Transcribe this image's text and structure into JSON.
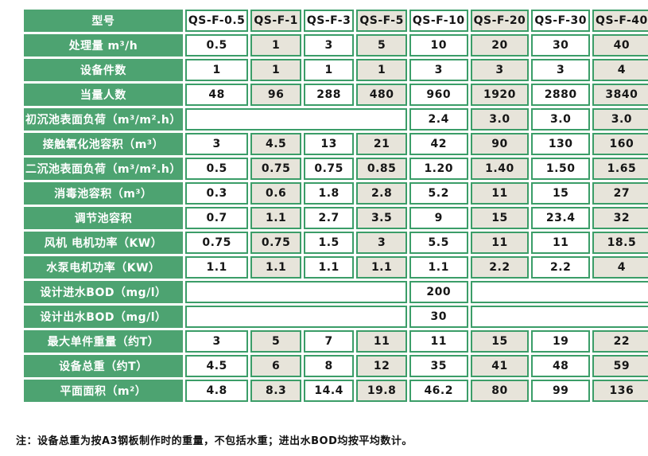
{
  "colors": {
    "green": "#4da371",
    "border_green": "#3b9d68",
    "beige": "#e7e4da",
    "cell_white": "#ffffff",
    "text_dark": "#161616",
    "text_light": "#ffffff"
  },
  "table": {
    "header_label": "型号",
    "models": [
      "QS-F-0.5",
      "QS-F-1",
      "QS-F-3",
      "QS-F-5",
      "QS-F-10",
      "QS-F-20",
      "QS-F-30",
      "QS-F-40"
    ],
    "rows": [
      {
        "label": "处理量 m³/h",
        "cells": [
          {
            "t": "0.5"
          },
          {
            "t": "1"
          },
          {
            "t": "3"
          },
          {
            "t": "5"
          },
          {
            "t": "10"
          },
          {
            "t": "20"
          },
          {
            "t": "30"
          },
          {
            "t": "40"
          }
        ]
      },
      {
        "label": "设备件数",
        "cells": [
          {
            "t": "1"
          },
          {
            "t": "1"
          },
          {
            "t": "1"
          },
          {
            "t": "1"
          },
          {
            "t": "3"
          },
          {
            "t": "3"
          },
          {
            "t": "3"
          },
          {
            "t": "4"
          }
        ]
      },
      {
        "label": "当量人数",
        "cells": [
          {
            "t": "48"
          },
          {
            "t": "96"
          },
          {
            "t": "288"
          },
          {
            "t": "480"
          },
          {
            "t": "960"
          },
          {
            "t": "1920"
          },
          {
            "t": "2880"
          },
          {
            "t": "3840"
          }
        ]
      },
      {
        "label": "初沉池表面负荷（m³/m².h）",
        "cells": [
          {
            "t": "",
            "span": 4
          },
          {
            "t": "2.4"
          },
          {
            "t": "3.0"
          },
          {
            "t": "3.0"
          },
          {
            "t": "3.0"
          }
        ]
      },
      {
        "label": "接触氧化池容积（m³）",
        "cells": [
          {
            "t": "3"
          },
          {
            "t": "4.5"
          },
          {
            "t": "13"
          },
          {
            "t": "21"
          },
          {
            "t": "42"
          },
          {
            "t": "90"
          },
          {
            "t": "130"
          },
          {
            "t": "160"
          }
        ]
      },
      {
        "label": "二沉池表面负荷（m³/m².h）",
        "cells": [
          {
            "t": "0.5"
          },
          {
            "t": "0.75"
          },
          {
            "t": "0.75"
          },
          {
            "t": "0.85"
          },
          {
            "t": "1.20"
          },
          {
            "t": "1.40"
          },
          {
            "t": "1.50"
          },
          {
            "t": "1.65"
          }
        ]
      },
      {
        "label": "消毒池容积（m³）",
        "cells": [
          {
            "t": "0.3"
          },
          {
            "t": "0.6"
          },
          {
            "t": "1.8"
          },
          {
            "t": "2.8"
          },
          {
            "t": "5.2"
          },
          {
            "t": "11"
          },
          {
            "t": "15"
          },
          {
            "t": "27"
          }
        ]
      },
      {
        "label": "调节池容积",
        "cells": [
          {
            "t": "0.7"
          },
          {
            "t": "1.1"
          },
          {
            "t": "2.7"
          },
          {
            "t": "3.5"
          },
          {
            "t": "9"
          },
          {
            "t": "15"
          },
          {
            "t": "23.4"
          },
          {
            "t": "32"
          }
        ]
      },
      {
        "label": "风机 电机功率（KW）",
        "cells": [
          {
            "t": "0.75"
          },
          {
            "t": "0.75"
          },
          {
            "t": "1.5"
          },
          {
            "t": "3"
          },
          {
            "t": "5.5"
          },
          {
            "t": "11"
          },
          {
            "t": "11"
          },
          {
            "t": "18.5"
          }
        ]
      },
      {
        "label": "水泵电机功率（KW）",
        "cells": [
          {
            "t": "1.1"
          },
          {
            "t": "1.1"
          },
          {
            "t": "1.1"
          },
          {
            "t": "1.1"
          },
          {
            "t": "1.1"
          },
          {
            "t": "2.2"
          },
          {
            "t": "2.2"
          },
          {
            "t": "4"
          }
        ]
      },
      {
        "label": "设计进水BOD（mg/l）",
        "cells": [
          {
            "t": "",
            "span": 4
          },
          {
            "t": "200"
          },
          {
            "t": "",
            "span": 3
          }
        ]
      },
      {
        "label": "设计出水BOD（mg/l）",
        "cells": [
          {
            "t": "",
            "span": 4
          },
          {
            "t": "30"
          },
          {
            "t": "",
            "span": 3
          }
        ]
      },
      {
        "label": "最大单件重量（约T）",
        "cells": [
          {
            "t": "3"
          },
          {
            "t": "5"
          },
          {
            "t": "7"
          },
          {
            "t": "11"
          },
          {
            "t": "11"
          },
          {
            "t": "15"
          },
          {
            "t": "19"
          },
          {
            "t": "22"
          }
        ]
      },
      {
        "label": "设备总重（约T）",
        "cells": [
          {
            "t": "4.5"
          },
          {
            "t": "6"
          },
          {
            "t": "8"
          },
          {
            "t": "12"
          },
          {
            "t": "35"
          },
          {
            "t": "41"
          },
          {
            "t": "48"
          },
          {
            "t": "59"
          }
        ]
      },
      {
        "label": "平面面积（m²）",
        "cells": [
          {
            "t": "4.8"
          },
          {
            "t": "8.3"
          },
          {
            "t": "14.4"
          },
          {
            "t": "19.8"
          },
          {
            "t": "46.2"
          },
          {
            "t": "80"
          },
          {
            "t": "99"
          },
          {
            "t": "136"
          }
        ]
      }
    ],
    "note": "注：设备总重为按A3钢板制作时的重量，不包括水重；进出水BOD均按平均数计。"
  }
}
